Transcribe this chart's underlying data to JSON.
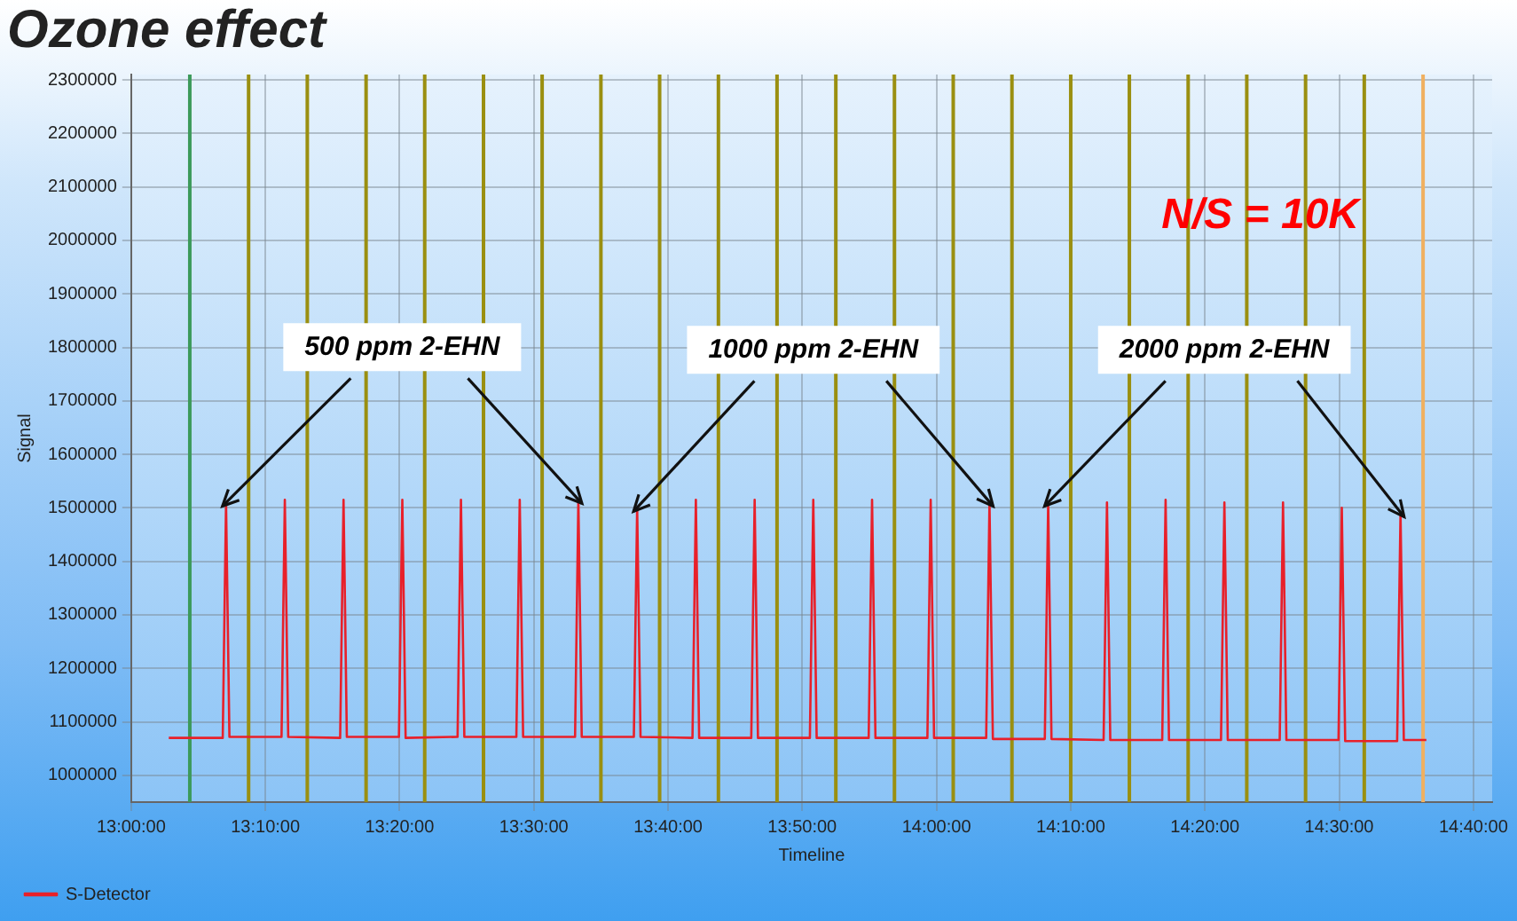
{
  "chart_data": {
    "type": "line",
    "title": "Ozone effect",
    "xlabel": "Timeline",
    "ylabel": "Signal",
    "xlim": [
      13.0,
      14.69
    ],
    "ylim": [
      950000,
      2310000
    ],
    "xticks": [
      {
        "value": 13.0,
        "label": "13:00:00"
      },
      {
        "value": 13.1667,
        "label": "13:10:00"
      },
      {
        "value": 13.3333,
        "label": "13:20:00"
      },
      {
        "value": 13.5,
        "label": "13:30:00"
      },
      {
        "value": 13.6667,
        "label": "13:40:00"
      },
      {
        "value": 13.8333,
        "label": "13:50:00"
      },
      {
        "value": 14.0,
        "label": "14:00:00"
      },
      {
        "value": 14.1667,
        "label": "14:10:00"
      },
      {
        "value": 14.3333,
        "label": "14:20:00"
      },
      {
        "value": 14.5,
        "label": "14:30:00"
      },
      {
        "value": 14.6667,
        "label": "14:40:00"
      }
    ],
    "yticks": [
      1000000,
      1100000,
      1200000,
      1300000,
      1400000,
      1500000,
      1600000,
      1700000,
      1800000,
      1900000,
      2000000,
      2100000,
      2200000,
      2300000
    ],
    "grid": true,
    "legend": "bottom left",
    "marker": "none",
    "line_style": "solid",
    "series": [
      {
        "name": "S-Detector",
        "color": "#e8202a",
        "x": [
          13.0467,
          13.1137,
          13.1178,
          13.122,
          13.1867,
          13.1908,
          13.195,
          13.2595,
          13.2637,
          13.2678,
          13.3325,
          13.3367,
          13.3408,
          13.4053,
          13.4095,
          13.4137,
          13.4783,
          13.4825,
          13.4867,
          13.5512,
          13.5553,
          13.5595,
          13.6242,
          13.6283,
          13.6325,
          13.697,
          13.7012,
          13.7053,
          13.77,
          13.7742,
          13.7783,
          13.8428,
          13.847,
          13.8512,
          13.9158,
          13.92,
          13.9242,
          13.9887,
          13.9928,
          13.997,
          14.0617,
          14.0658,
          14.07,
          14.1345,
          14.1387,
          14.1428,
          14.2075,
          14.2117,
          14.2158,
          14.2803,
          14.2845,
          14.2887,
          14.3533,
          14.3575,
          14.3617,
          14.4262,
          14.4303,
          14.4345,
          14.4992,
          14.5033,
          14.5075,
          14.572,
          14.5762,
          14.5803,
          14.6083
        ],
        "values": [
          1070000,
          1070000,
          1510000,
          1072000,
          1072000,
          1515000,
          1072000,
          1070000,
          1515000,
          1072000,
          1072000,
          1515000,
          1070000,
          1072000,
          1515000,
          1072000,
          1072000,
          1515000,
          1072000,
          1072000,
          1515000,
          1072000,
          1072000,
          1500000,
          1072000,
          1070000,
          1515000,
          1070000,
          1070000,
          1515000,
          1070000,
          1070000,
          1515000,
          1070000,
          1070000,
          1515000,
          1070000,
          1070000,
          1515000,
          1070000,
          1070000,
          1510000,
          1068000,
          1068000,
          1510000,
          1068000,
          1066000,
          1510000,
          1066000,
          1066000,
          1515000,
          1066000,
          1066000,
          1510000,
          1066000,
          1066000,
          1510000,
          1066000,
          1066000,
          1500000,
          1064000,
          1064000,
          1490000,
          1066000,
          1066000
        ]
      }
    ],
    "ref_lines": [
      {
        "axis": "x",
        "value": 13.0728,
        "color": "#3c9a5a"
      },
      {
        "axis": "x",
        "value": 13.1458,
        "color": "#9a8f10"
      },
      {
        "axis": "x",
        "value": 13.2187,
        "color": "#9a8f10"
      },
      {
        "axis": "x",
        "value": 13.2917,
        "color": "#9a8f10"
      },
      {
        "axis": "x",
        "value": 13.3645,
        "color": "#9a8f10"
      },
      {
        "axis": "x",
        "value": 13.4375,
        "color": "#9a8f10"
      },
      {
        "axis": "x",
        "value": 13.5103,
        "color": "#9a8f10"
      },
      {
        "axis": "x",
        "value": 13.5833,
        "color": "#9a8f10"
      },
      {
        "axis": "x",
        "value": 13.6562,
        "color": "#9a8f10"
      },
      {
        "axis": "x",
        "value": 13.7292,
        "color": "#9a8f10"
      },
      {
        "axis": "x",
        "value": 13.802,
        "color": "#9a8f10"
      },
      {
        "axis": "x",
        "value": 13.875,
        "color": "#9a8f10"
      },
      {
        "axis": "x",
        "value": 13.9478,
        "color": "#9a8f10"
      },
      {
        "axis": "x",
        "value": 14.0208,
        "color": "#9a8f10"
      },
      {
        "axis": "x",
        "value": 14.0937,
        "color": "#9a8f10"
      },
      {
        "axis": "x",
        "value": 14.1667,
        "color": "#9a8f10"
      },
      {
        "axis": "x",
        "value": 14.2395,
        "color": "#9a8f10"
      },
      {
        "axis": "x",
        "value": 14.3125,
        "color": "#9a8f10"
      },
      {
        "axis": "x",
        "value": 14.3853,
        "color": "#9a8f10"
      },
      {
        "axis": "x",
        "value": 14.4583,
        "color": "#9a8f10"
      },
      {
        "axis": "x",
        "value": 14.5312,
        "color": "#9a8f10"
      },
      {
        "axis": "x",
        "value": 14.6042,
        "color": "#f0b060"
      }
    ],
    "annotations": [
      {
        "text": "500 ppm 2-EHN",
        "x": 13.1178,
        "y": 1510000
      },
      {
        "text": "1000 ppm 2-EHN",
        "x": 13.6283,
        "y": 1500000
      },
      {
        "text": "2000 ppm 2-EHN",
        "x": 14.1387,
        "y": 1510000
      },
      "N/S = 10K"
    ]
  }
}
